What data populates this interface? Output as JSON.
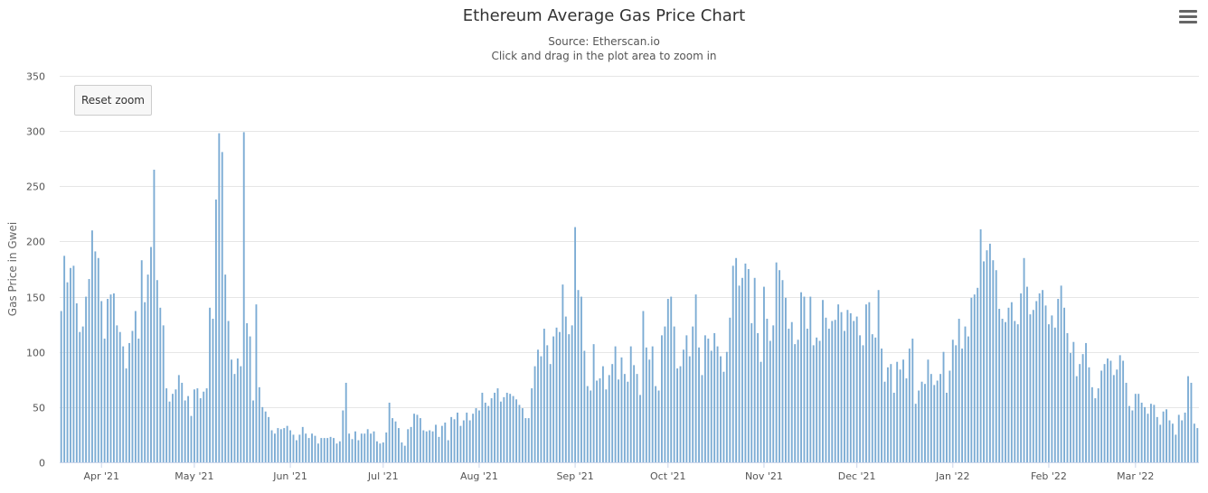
{
  "header": {
    "title": "Ethereum Average Gas Price Chart",
    "subtitle": "Source: Etherscan.io",
    "hint": "Click and drag in the plot area to zoom in"
  },
  "controls": {
    "reset_zoom_label": "Reset zoom",
    "menu_icon": "hamburger-menu-icon"
  },
  "chart_data": {
    "type": "bar",
    "title": "Ethereum Average Gas Price Chart",
    "subtitle": "Source: Etherscan.io",
    "xlabel": "",
    "ylabel": "Gas Price in Gwei",
    "ylim": [
      0,
      350
    ],
    "yticks": [
      0,
      50,
      100,
      150,
      200,
      250,
      300,
      350
    ],
    "grid": true,
    "bar_color": "#7cacd4",
    "start_date": "2021-03-19",
    "x_tick_labels": [
      "Apr '21",
      "May '21",
      "Jun '21",
      "Jul '21",
      "Aug '21",
      "Sep '21",
      "Oct '21",
      "Nov '21",
      "Dec '21",
      "Jan '22",
      "Feb '22",
      "Mar '22"
    ],
    "x_tick_day_offsets": [
      13,
      43,
      74,
      104,
      135,
      166,
      196,
      227,
      257,
      288,
      319,
      347
    ],
    "values": [
      137,
      187,
      163,
      176,
      178,
      144,
      118,
      123,
      150,
      166,
      210,
      191,
      185,
      146,
      112,
      148,
      152,
      153,
      124,
      118,
      105,
      85,
      108,
      119,
      137,
      112,
      183,
      145,
      170,
      195,
      265,
      165,
      140,
      124,
      67,
      55,
      62,
      66,
      79,
      72,
      56,
      60,
      42,
      66,
      67,
      58,
      64,
      67,
      140,
      130,
      238,
      298,
      281,
      170,
      128,
      93,
      80,
      94,
      87,
      299,
      126,
      114,
      56,
      143,
      68,
      50,
      46,
      41,
      29,
      26,
      31,
      30,
      31,
      33,
      29,
      25,
      20,
      25,
      32,
      26,
      22,
      26,
      24,
      17,
      22,
      22,
      22,
      23,
      22,
      17,
      19,
      47,
      72,
      26,
      21,
      28,
      20,
      26,
      26,
      30,
      26,
      28,
      19,
      17,
      18,
      27,
      54,
      40,
      37,
      31,
      18,
      15,
      30,
      32,
      44,
      43,
      40,
      29,
      28,
      29,
      28,
      34,
      23,
      33,
      36,
      20,
      41,
      39,
      45,
      33,
      38,
      45,
      38,
      44,
      49,
      47,
      63,
      54,
      51,
      58,
      63,
      67,
      55,
      59,
      63,
      62,
      60,
      57,
      52,
      49,
      40,
      40,
      67,
      87,
      102,
      96,
      121,
      106,
      89,
      114,
      122,
      118,
      161,
      132,
      116,
      124,
      213,
      156,
      150,
      101,
      69,
      65,
      107,
      74,
      76,
      87,
      66,
      79,
      89,
      105,
      75,
      95,
      80,
      73,
      105,
      88,
      80,
      61,
      137,
      104,
      93,
      105,
      69,
      65,
      115,
      123,
      148,
      150,
      123,
      85,
      87,
      102,
      115,
      96,
      123,
      152,
      104,
      79,
      115,
      112,
      101,
      117,
      105,
      96,
      82,
      100,
      131,
      178,
      185,
      160,
      167,
      180,
      175,
      126,
      167,
      117,
      91,
      159,
      130,
      110,
      124,
      181,
      174,
      165,
      149,
      121,
      127,
      107,
      111,
      154,
      150,
      121,
      150,
      106,
      113,
      110,
      147,
      131,
      121,
      128,
      129,
      143,
      136,
      119,
      138,
      135,
      128,
      132,
      115,
      106,
      143,
      145,
      116,
      113,
      156,
      103,
      73,
      86,
      89,
      63,
      91,
      84,
      93,
      76,
      103,
      112,
      53,
      65,
      73,
      71,
      93,
      80,
      70,
      74,
      80,
      100,
      63,
      83,
      111,
      106,
      130,
      103,
      123,
      114,
      149,
      152,
      158,
      211,
      182,
      192,
      198,
      183,
      174,
      139,
      130,
      127,
      140,
      145,
      128,
      125,
      153,
      185,
      159,
      134,
      138,
      146,
      153,
      156,
      142,
      125,
      133,
      122,
      148,
      160,
      140,
      117,
      99,
      109,
      78,
      89,
      98,
      108,
      86,
      68,
      58,
      67,
      83,
      89,
      94,
      92,
      79,
      84,
      97,
      92,
      72,
      51,
      47,
      62,
      62,
      54,
      50,
      44,
      53,
      52,
      41,
      34,
      46,
      48,
      38,
      35,
      25,
      43,
      38,
      45,
      78,
      72,
      35,
      31
    ]
  }
}
